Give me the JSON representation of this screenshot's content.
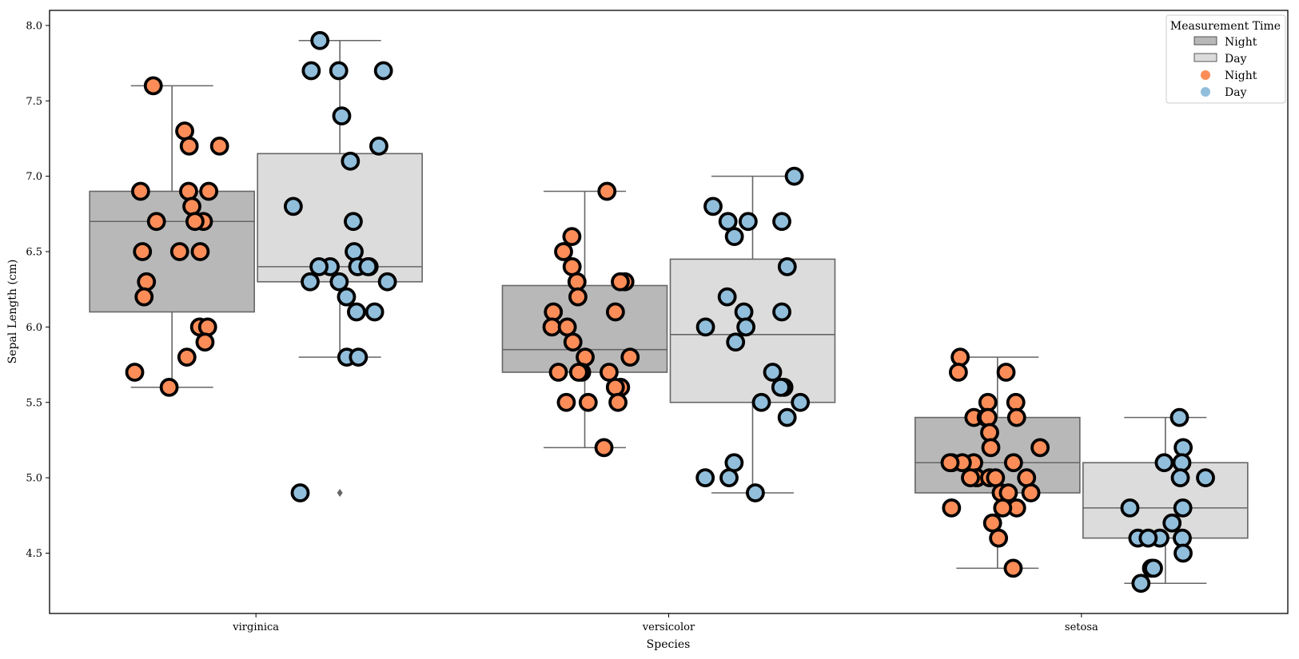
{
  "chart_data": {
    "type": "box",
    "xlabel": "Species",
    "ylabel": "Sepal Length (cm)",
    "ylim": [
      4.1,
      8.1
    ],
    "yticks": [
      "4.5",
      "5.0",
      "5.5",
      "6.0",
      "6.5",
      "7.0",
      "7.5",
      "8.0"
    ],
    "categories": [
      "virginica",
      "versicolor",
      "setosa"
    ],
    "legend": {
      "title": "Measurement Time",
      "placement": "top-right",
      "box_entries": [
        "Night",
        "Day"
      ],
      "point_entries": [
        "Night",
        "Day"
      ]
    },
    "colors": {
      "box_night": "#b8b8b8",
      "box_day": "#dcdcdc",
      "box_edge": "#666666",
      "point_night": "#fc8d59",
      "point_day": "#91bfdb",
      "point_edge": "#000000"
    },
    "series": [
      {
        "name": "Night",
        "boxes": [
          {
            "q1": 6.1,
            "median": 6.7,
            "q3": 6.9,
            "whisker_low": 5.6,
            "whisker_high": 7.6,
            "outliers": []
          },
          {
            "q1": 5.7,
            "median": 5.85,
            "q3": 6.275,
            "whisker_low": 5.2,
            "whisker_high": 6.9,
            "outliers": []
          },
          {
            "q1": 4.9,
            "median": 5.1,
            "q3": 5.4,
            "whisker_low": 4.4,
            "whisker_high": 5.8,
            "outliers": []
          }
        ],
        "points": [
          [
            5.8,
            7.6,
            7.3,
            7.2,
            7.2,
            6.9,
            6.9,
            6.9,
            6.8,
            6.7,
            6.7,
            6.7,
            6.5,
            6.5,
            6.5,
            6.3,
            6.2,
            6.0,
            6.0,
            5.9,
            5.7,
            5.6
          ],
          [
            6.9,
            6.6,
            6.5,
            6.4,
            6.3,
            6.3,
            6.3,
            6.2,
            6.1,
            6.1,
            6.0,
            6.0,
            5.9,
            5.8,
            5.8,
            5.7,
            5.7,
            5.7,
            5.7,
            5.6,
            5.6,
            5.5,
            5.5,
            5.5,
            5.2
          ],
          [
            5.8,
            5.7,
            5.7,
            5.5,
            5.5,
            5.4,
            5.4,
            5.4,
            5.4,
            5.3,
            5.2,
            5.2,
            5.1,
            5.1,
            5.1,
            5.1,
            5.1,
            5.0,
            5.0,
            5.0,
            5.0,
            5.0,
            5.0,
            4.9,
            4.9,
            4.9,
            4.8,
            4.8,
            4.8,
            4.7,
            4.6,
            4.4
          ]
        ]
      },
      {
        "name": "Day",
        "boxes": [
          {
            "q1": 6.3,
            "median": 6.4,
            "q3": 7.15,
            "whisker_low": 5.8,
            "whisker_high": 7.9,
            "outliers": [
              4.9
            ]
          },
          {
            "q1": 5.5,
            "median": 5.95,
            "q3": 6.45,
            "whisker_low": 4.9,
            "whisker_high": 7.0,
            "outliers": []
          },
          {
            "q1": 4.6,
            "median": 4.8,
            "q3": 5.1,
            "whisker_low": 4.3,
            "whisker_high": 5.4,
            "outliers": []
          }
        ],
        "points": [
          [
            7.9,
            7.7,
            7.7,
            7.7,
            7.4,
            7.2,
            7.1,
            6.8,
            6.7,
            6.5,
            6.4,
            6.4,
            6.4,
            6.4,
            6.4,
            6.3,
            6.3,
            6.3,
            6.2,
            6.1,
            6.1,
            5.8,
            5.8,
            4.9
          ],
          [
            7.0,
            6.8,
            6.7,
            6.7,
            6.7,
            6.6,
            6.4,
            6.2,
            6.1,
            6.1,
            6.0,
            6.0,
            5.9,
            5.7,
            5.6,
            5.6,
            5.5,
            5.5,
            5.4,
            5.1,
            5.0,
            5.0,
            4.9
          ],
          [
            5.4,
            5.2,
            5.1,
            5.1,
            5.0,
            5.0,
            4.8,
            4.8,
            4.7,
            4.6,
            4.6,
            4.6,
            4.6,
            4.5,
            4.4,
            4.4,
            4.3
          ]
        ]
      }
    ]
  }
}
